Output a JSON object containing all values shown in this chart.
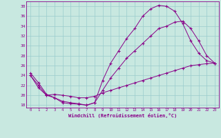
{
  "xlabel": "Windchill (Refroidissement éolien,°C)",
  "xlim": [
    -0.5,
    23.5
  ],
  "ylim": [
    17.5,
    39
  ],
  "yticks": [
    18,
    20,
    22,
    24,
    26,
    28,
    30,
    32,
    34,
    36,
    38
  ],
  "xticks": [
    0,
    1,
    2,
    3,
    4,
    5,
    6,
    7,
    8,
    9,
    10,
    11,
    12,
    13,
    14,
    15,
    16,
    17,
    18,
    19,
    20,
    21,
    22,
    23
  ],
  "bg_color": "#c8e8e0",
  "grid_color": "#99cccc",
  "line_color": "#880088",
  "lines": [
    {
      "x": [
        0,
        1,
        2,
        3,
        4,
        5,
        6,
        7,
        8,
        9,
        10,
        11,
        12,
        13,
        14,
        15,
        16,
        17,
        18,
        19,
        20,
        21,
        22,
        23
      ],
      "y": [
        24.5,
        22.5,
        20.2,
        19.5,
        18.5,
        18.3,
        18.2,
        18.0,
        18.5,
        23.0,
        26.5,
        29.0,
        31.5,
        33.5,
        36.0,
        37.5,
        38.2,
        38.0,
        37.0,
        34.5,
        31.0,
        28.5,
        27.0,
        26.5
      ]
    },
    {
      "x": [
        0,
        1,
        2,
        3,
        4,
        5,
        6,
        7,
        8,
        9,
        10,
        11,
        12,
        13,
        14,
        15,
        16,
        17,
        18,
        19,
        20,
        21,
        22,
        23
      ],
      "y": [
        24.0,
        22.0,
        20.0,
        19.5,
        18.8,
        18.5,
        18.3,
        18.0,
        18.5,
        21.0,
        23.5,
        25.5,
        27.5,
        29.0,
        30.5,
        32.0,
        33.5,
        34.0,
        34.8,
        35.0,
        33.5,
        31.0,
        28.0,
        26.5
      ]
    },
    {
      "x": [
        0,
        1,
        2,
        3,
        4,
        5,
        6,
        7,
        8,
        9,
        10,
        11,
        12,
        13,
        14,
        15,
        16,
        17,
        18,
        19,
        20,
        21,
        22,
        23
      ],
      "y": [
        24.0,
        21.5,
        20.0,
        20.2,
        20.0,
        19.8,
        19.5,
        19.5,
        19.8,
        20.5,
        21.0,
        21.5,
        22.0,
        22.5,
        23.0,
        23.5,
        24.0,
        24.5,
        25.0,
        25.5,
        26.0,
        26.2,
        26.4,
        26.5
      ]
    }
  ]
}
